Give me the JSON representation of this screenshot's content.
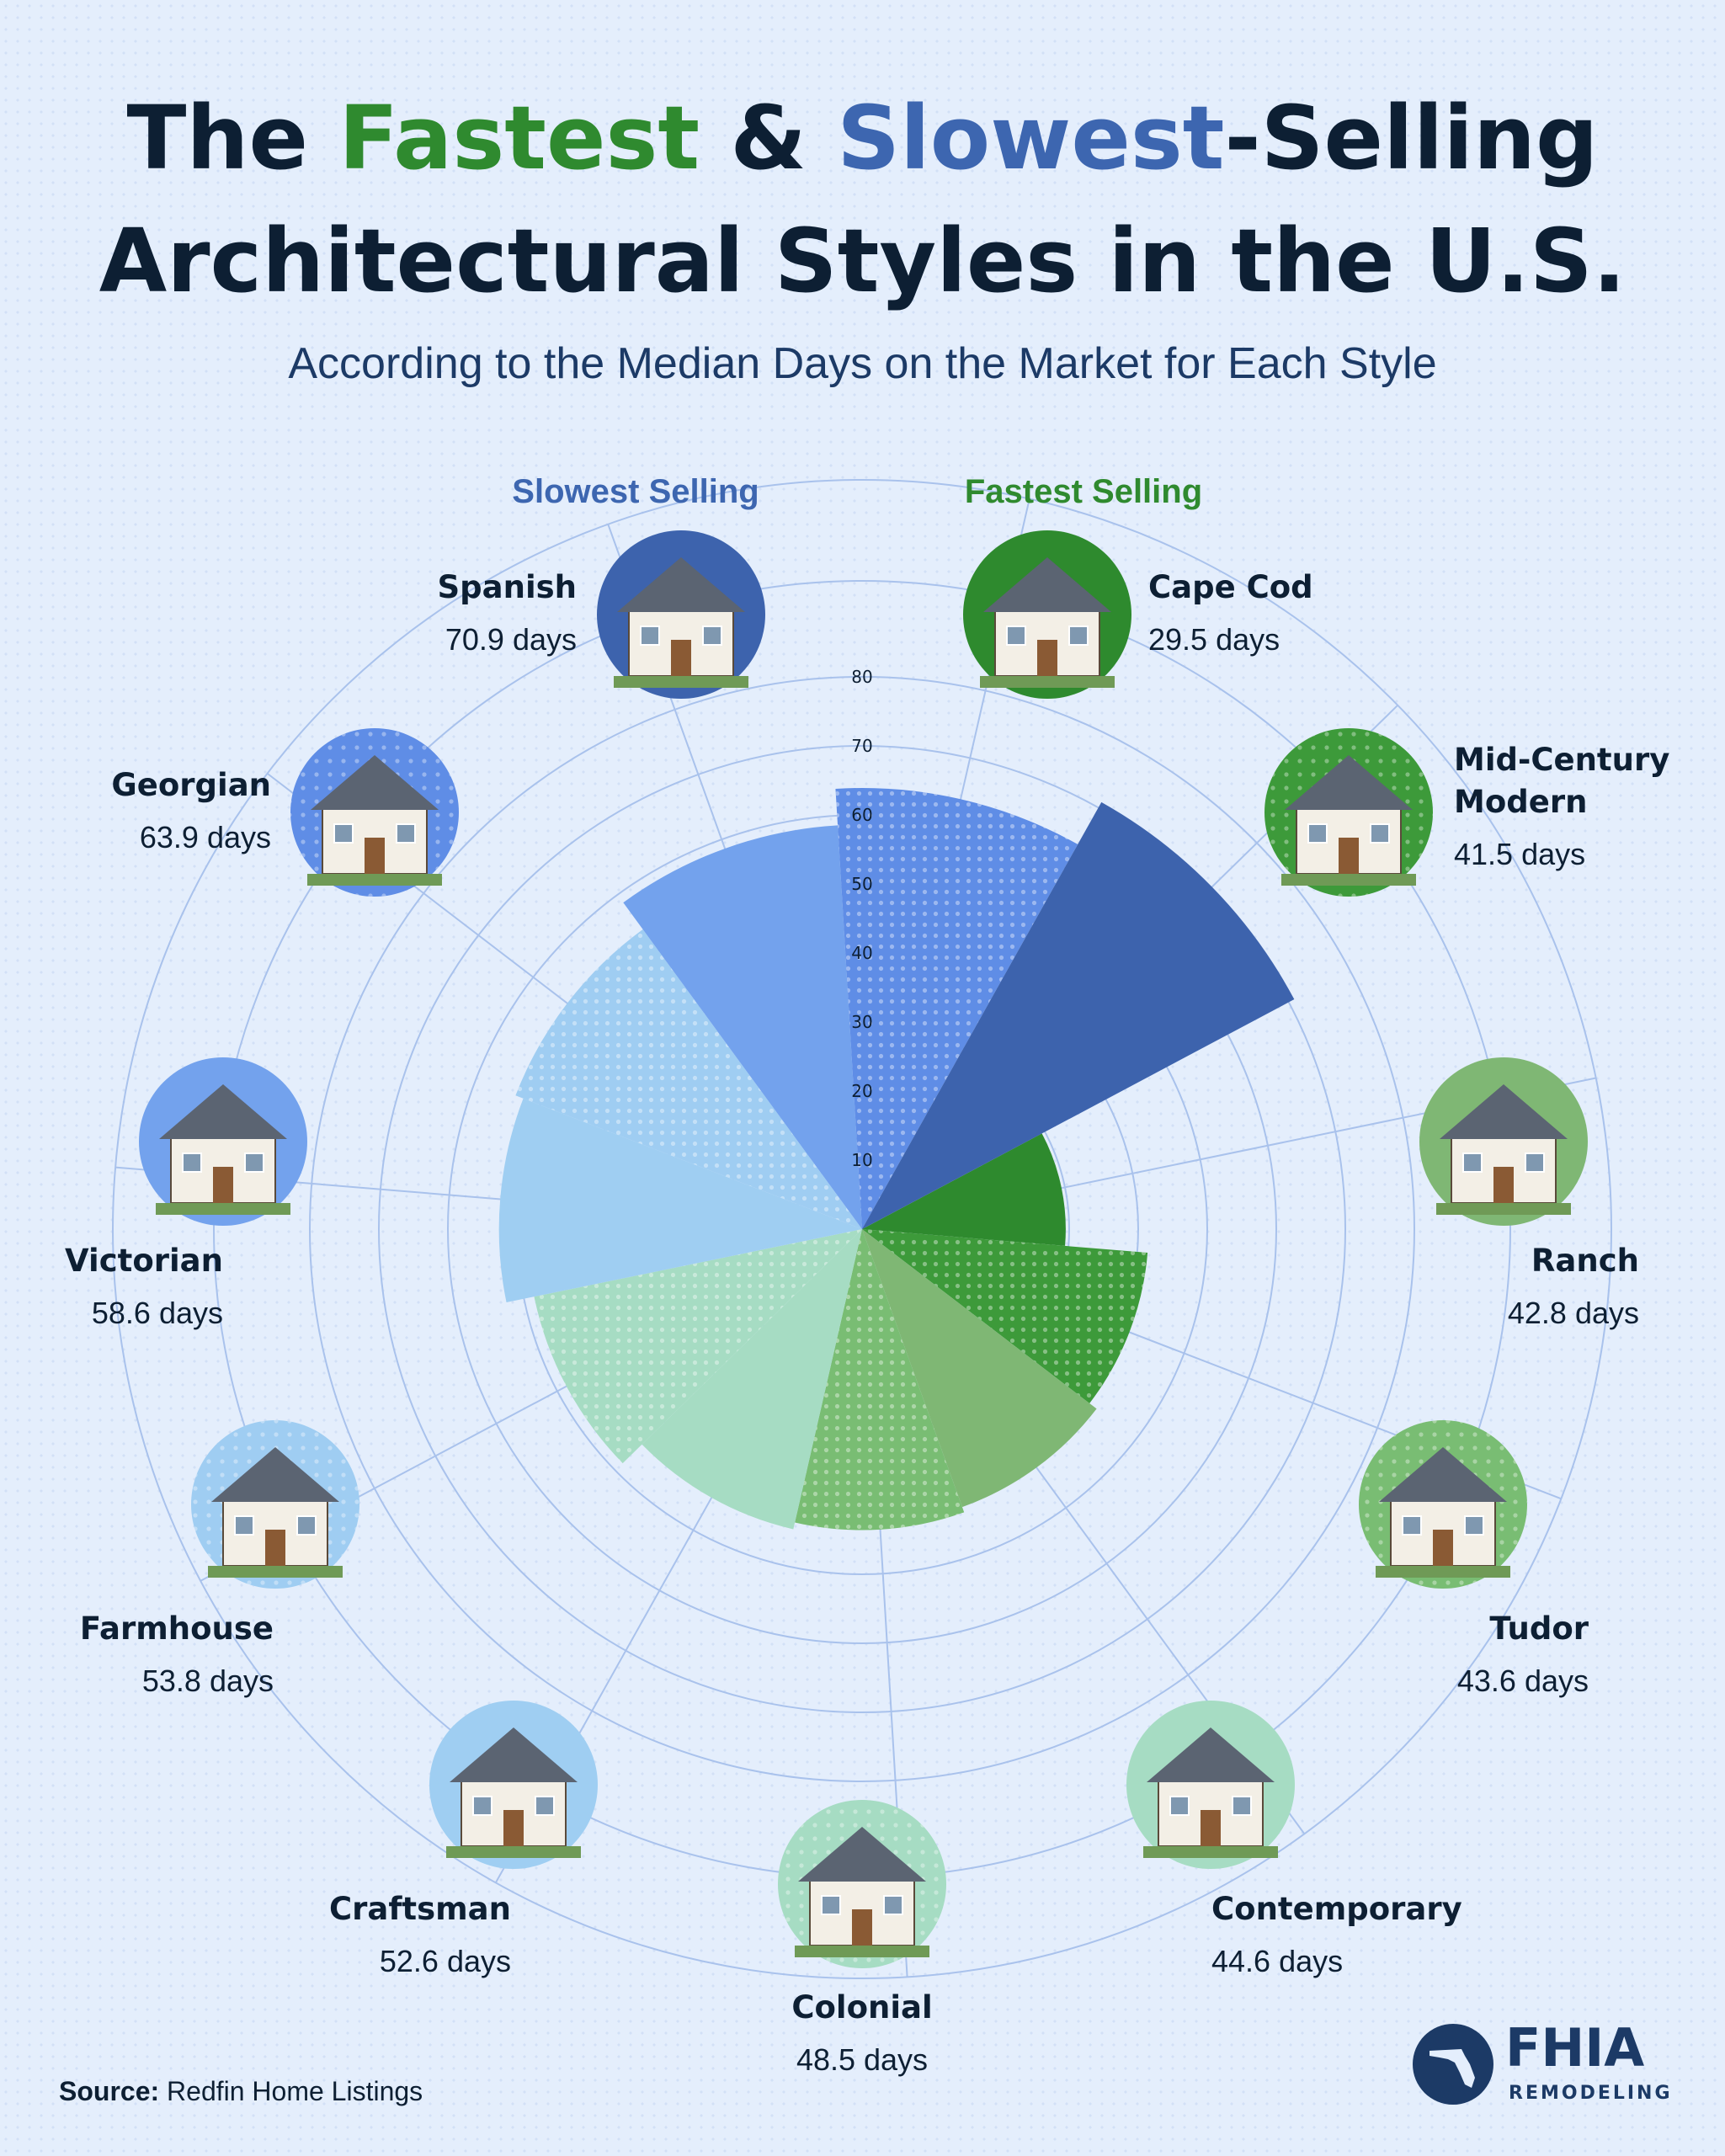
{
  "title": {
    "line1_prefix": "The ",
    "fastest": "Fastest",
    "amp": " & ",
    "slowest": "Slowest",
    "line1_suffix": "-Selling",
    "line2": "Architectural Styles in the U.S."
  },
  "subtitle": "According to the Median Days on the Market for Each Style",
  "source": {
    "label": "Source:",
    "text": " Redfin Home Listings"
  },
  "logo": {
    "name": "FHIA",
    "tagline": "REMODELING"
  },
  "colors": {
    "fastest": "#2f8a2f",
    "slowest": "#3d66b0",
    "title": "#0d1f33",
    "grid": "#a9c2ec"
  },
  "chart_data": {
    "type": "polar-bar",
    "unit": "days",
    "r_ticks": [
      10,
      20,
      30,
      40,
      50,
      60,
      70,
      80
    ],
    "rlim": [
      0,
      80
    ],
    "groups": {
      "slowest": "Slowest Selling",
      "fastest": "Fastest Selling"
    },
    "categories": [
      {
        "name": "Cape Cod",
        "value": 29.5,
        "days_label": "29.5 days",
        "group": "fastest",
        "color": "#2e8a2e",
        "pattern": false
      },
      {
        "name": "Mid-Century Modern",
        "value": 41.5,
        "days_label": "41.5 days",
        "group": "fastest",
        "color": "#3d9a3a",
        "pattern": true
      },
      {
        "name": "Ranch",
        "value": 42.8,
        "days_label": "42.8 days",
        "group": "fastest",
        "color": "#7fb774",
        "pattern": false
      },
      {
        "name": "Tudor",
        "value": 43.6,
        "days_label": "43.6 days",
        "group": "fastest",
        "color": "#79bd73",
        "pattern": true
      },
      {
        "name": "Contemporary",
        "value": 44.6,
        "days_label": "44.6 days",
        "group": "fastest",
        "color": "#a6dcc3",
        "pattern": false
      },
      {
        "name": "Colonial",
        "value": 48.5,
        "days_label": "48.5 days",
        "group": "fastest",
        "color": "#a6dcc3",
        "pattern": true
      },
      {
        "name": "Craftsman",
        "value": 52.6,
        "days_label": "52.6 days",
        "group": "slowest",
        "color": "#9fcef2",
        "pattern": false
      },
      {
        "name": "Farmhouse",
        "value": 53.8,
        "days_label": "53.8 days",
        "group": "slowest",
        "color": "#9fcdf2",
        "pattern": true
      },
      {
        "name": "Victorian",
        "value": 58.6,
        "days_label": "58.6 days",
        "group": "slowest",
        "color": "#73a2ed",
        "pattern": false
      },
      {
        "name": "Georgian",
        "value": 63.9,
        "days_label": "63.9 days",
        "group": "slowest",
        "color": "#5f8de6",
        "pattern": true
      },
      {
        "name": "Spanish",
        "value": 70.9,
        "days_label": "70.9 days",
        "group": "slowest",
        "color": "#3d63ad",
        "pattern": false
      }
    ]
  }
}
